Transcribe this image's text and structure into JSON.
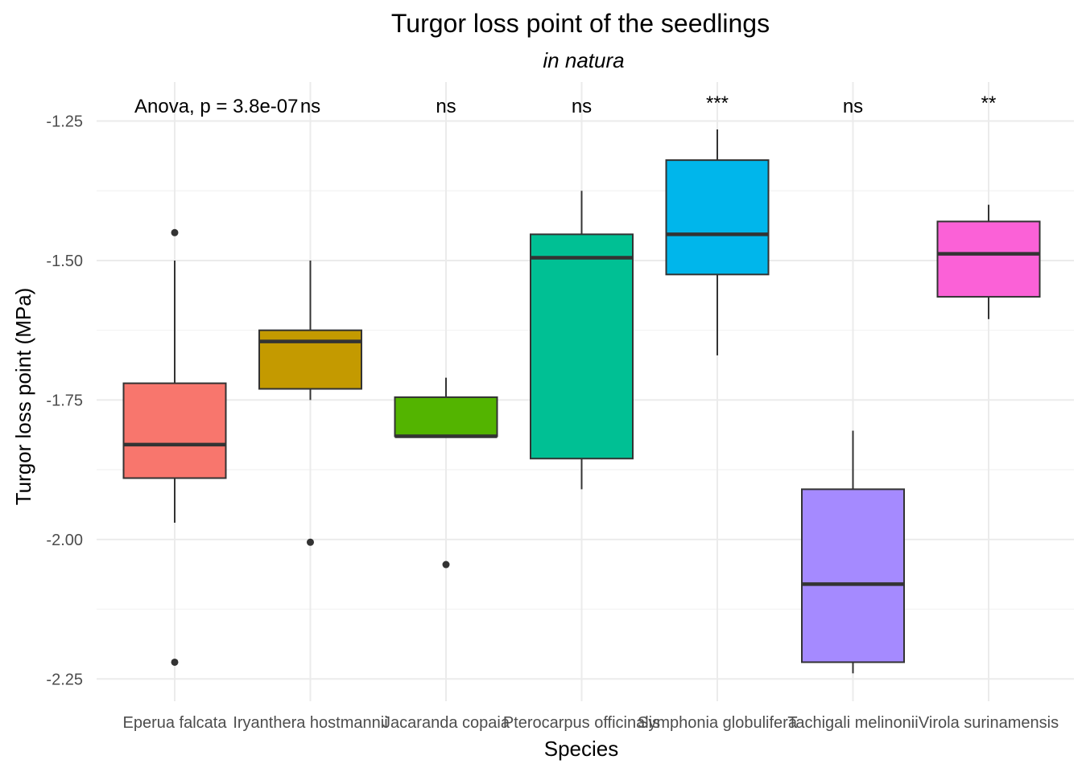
{
  "chart_data": {
    "type": "boxplot",
    "title": "Turgor loss point of the seedlings",
    "subtitle": "in natura",
    "xlabel": "Species",
    "ylabel": "Turgor loss point (MPa)",
    "ylim": [
      -2.29,
      -1.18
    ],
    "yticks": [
      -2.25,
      -2.0,
      -1.75,
      -1.5,
      -1.25
    ],
    "ytick_labels": [
      "-2.25",
      "-2.00",
      "-1.75",
      "-1.50",
      "-1.25"
    ],
    "grid": true,
    "legend": "none",
    "test_annotation": "Anova, p = 3.8e-07",
    "categories": [
      "Eperua falcata",
      "Iryanthera hostmannii",
      "Jacaranda copaia",
      "Pterocarpus officinalis",
      "Symphonia globulifera",
      "Tachigali melinonii",
      "Virola surinamensis"
    ],
    "series": [
      {
        "category": "Eperua falcata",
        "color": "#F8766D",
        "whisker_low": -1.97,
        "q1": -1.89,
        "median": -1.83,
        "q3": -1.72,
        "whisker_high": -1.5,
        "outliers": [
          -1.45,
          -2.22
        ],
        "significance": ""
      },
      {
        "category": "Iryanthera hostmannii",
        "color": "#C49A00",
        "whisker_low": -1.75,
        "q1": -1.73,
        "median": -1.645,
        "q3": -1.625,
        "whisker_high": -1.5,
        "outliers": [
          -2.005
        ],
        "significance": "ns"
      },
      {
        "category": "Jacaranda copaia",
        "color": "#53B400",
        "whisker_low": -1.815,
        "q1": -1.815,
        "median": -1.815,
        "q3": -1.745,
        "whisker_high": -1.71,
        "outliers": [
          -2.045
        ],
        "significance": "ns"
      },
      {
        "category": "Pterocarpus officinalis",
        "color": "#00C094",
        "whisker_low": -1.91,
        "q1": -1.855,
        "median": -1.495,
        "q3": -1.453,
        "whisker_high": -1.375,
        "outliers": [],
        "significance": "ns"
      },
      {
        "category": "Symphonia globulifera",
        "color": "#00B6EB",
        "whisker_low": -1.67,
        "q1": -1.525,
        "median": -1.453,
        "q3": -1.32,
        "whisker_high": -1.265,
        "outliers": [],
        "significance": "***"
      },
      {
        "category": "Tachigali melinonii",
        "color": "#A58AFF",
        "whisker_low": -2.24,
        "q1": -2.22,
        "median": -2.08,
        "q3": -1.91,
        "whisker_high": -1.805,
        "outliers": [],
        "significance": "ns"
      },
      {
        "category": "Virola surinamensis",
        "color": "#FB61D7",
        "whisker_low": -1.605,
        "q1": -1.565,
        "median": -1.488,
        "q3": -1.43,
        "whisker_high": -1.4,
        "outliers": [],
        "significance": "**"
      }
    ]
  }
}
